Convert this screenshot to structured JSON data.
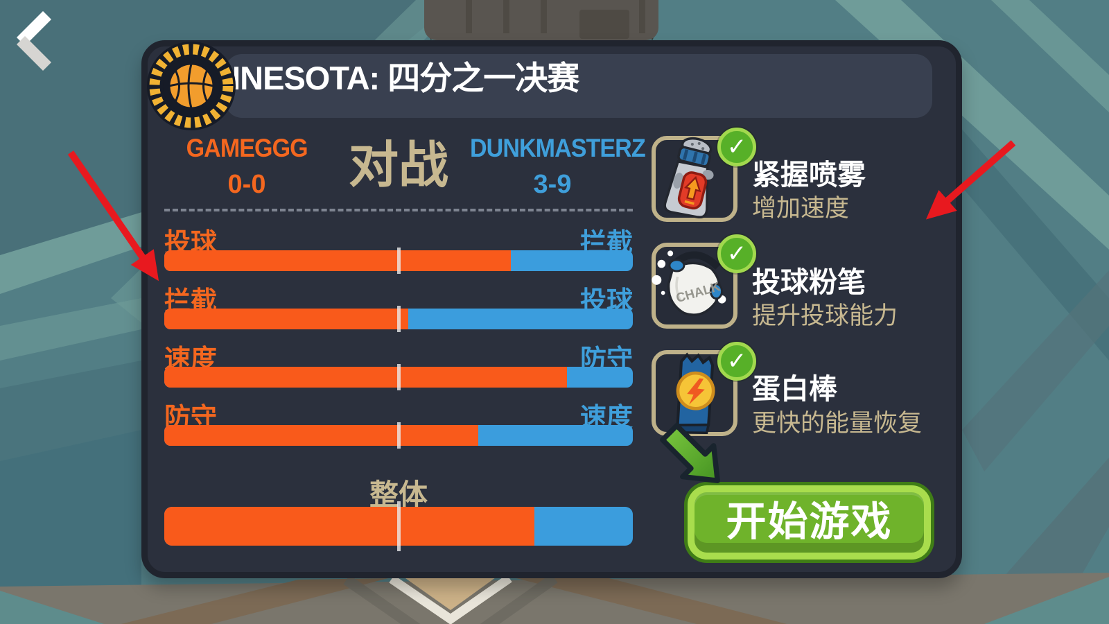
{
  "header": {
    "title": "MINNESOTA: 四分之一决赛",
    "badge_icon": "basketball-medal-icon"
  },
  "nav": {
    "back_icon": "back-chevron-icon"
  },
  "matchup": {
    "home_team": {
      "name": "GAMEGGG",
      "record": "0-0"
    },
    "versus_label": "对战",
    "away_team": {
      "name": "DUNKMASTERZ",
      "record": "3-9"
    }
  },
  "stats": {
    "rows": [
      {
        "left_label": "投球",
        "right_label": "拦截",
        "home_pct": 74
      },
      {
        "left_label": "拦截",
        "right_label": "投球",
        "home_pct": 52
      },
      {
        "left_label": "速度",
        "right_label": "防守",
        "home_pct": 86
      },
      {
        "left_label": "防守",
        "right_label": "速度",
        "home_pct": 67
      }
    ],
    "overall": {
      "label": "整体",
      "home_pct": 79
    }
  },
  "boosts": [
    {
      "name": "紧握喷雾",
      "effect": "增加速度",
      "icon": "grip-spray-icon",
      "equipped": true
    },
    {
      "name": "投球粉笔",
      "effect": "提升投球能力",
      "icon": "shot-chalk-icon",
      "equipped": true
    },
    {
      "name": "蛋白棒",
      "effect": "更快的能量恢复",
      "icon": "protein-bar-icon",
      "equipped": true
    }
  ],
  "start_button": {
    "label": "开始游戏"
  },
  "glyphs": {
    "check": "✓",
    "chalk_bag_text": "CHALK"
  },
  "colors": {
    "home_orange": "#f95a1b",
    "away_blue": "#3b9ddd",
    "accent_tan": "#c7b890",
    "panel_bg": "#2b303d",
    "button_green": "#6fb32b",
    "annotation_red": "#e8191f"
  }
}
